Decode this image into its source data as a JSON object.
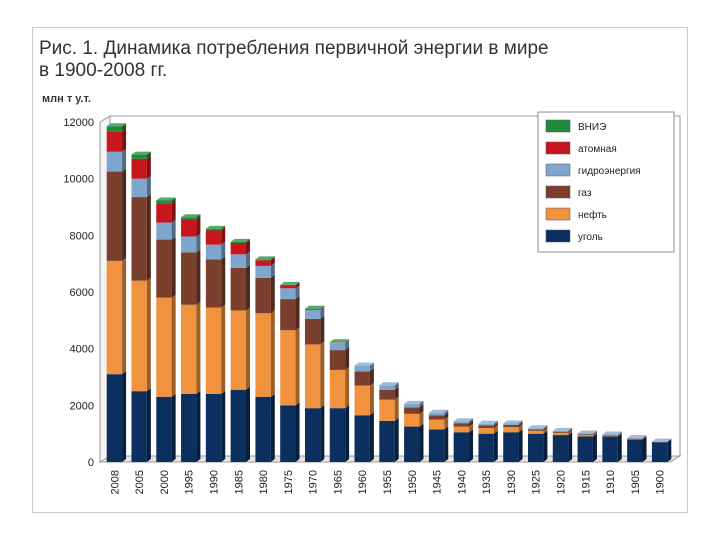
{
  "title_line1": "Рис. 1. Динамика потребления первичной энергии в мире",
  "title_line2": "в 1900-2008 гг.",
  "chart_data": {
    "type": "bar",
    "stacked": true,
    "ylabel": "млн т у.т.",
    "ylim": [
      0,
      12000
    ],
    "yticks": [
      0,
      2000,
      4000,
      6000,
      8000,
      10000,
      12000
    ],
    "grid": true,
    "legend_position": "top-right",
    "categories": [
      "2008",
      "2005",
      "2000",
      "1995",
      "1990",
      "1985",
      "1980",
      "1975",
      "1970",
      "1965",
      "1960",
      "1955",
      "1950",
      "1945",
      "1940",
      "1935",
      "1930",
      "1925",
      "1920",
      "1915",
      "1910",
      "1905",
      "1900"
    ],
    "series": [
      {
        "name": "уголь",
        "color": "#0b2f5e",
        "values": [
          3100,
          2500,
          2300,
          2400,
          2400,
          2550,
          2300,
          2000,
          1900,
          1900,
          1650,
          1450,
          1250,
          1150,
          1050,
          1000,
          1050,
          1000,
          950,
          900,
          900,
          800,
          700
        ]
      },
      {
        "name": "нефть",
        "color": "#f0923e",
        "values": [
          4000,
          3900,
          3500,
          3150,
          3050,
          2800,
          2950,
          2650,
          2250,
          1350,
          1050,
          750,
          450,
          350,
          200,
          200,
          180,
          100,
          80,
          50,
          30,
          20,
          10
        ]
      },
      {
        "name": "газ",
        "color": "#7b3f2e",
        "values": [
          3150,
          2950,
          2050,
          1850,
          1700,
          1500,
          1250,
          1100,
          900,
          700,
          500,
          350,
          230,
          150,
          120,
          90,
          80,
          50,
          40,
          30,
          20,
          10,
          5
        ]
      },
      {
        "name": "гидроэнергия",
        "color": "#7fa6cc",
        "values": [
          700,
          650,
          600,
          560,
          520,
          480,
          420,
          380,
          320,
          260,
          200,
          160,
          120,
          90,
          70,
          60,
          50,
          40,
          30,
          25,
          20,
          15,
          10
        ]
      },
      {
        "name": "атомная",
        "color": "#c8171c",
        "values": [
          700,
          700,
          680,
          600,
          500,
          400,
          200,
          100,
          30,
          10,
          0,
          0,
          0,
          0,
          0,
          0,
          0,
          0,
          0,
          0,
          0,
          0,
          0
        ]
      },
      {
        "name": "ВНИЭ",
        "color": "#1f8a3a",
        "values": [
          200,
          150,
          100,
          80,
          60,
          40,
          30,
          20,
          10,
          5,
          0,
          0,
          0,
          0,
          0,
          0,
          0,
          0,
          0,
          0,
          0,
          0,
          0
        ]
      }
    ]
  }
}
